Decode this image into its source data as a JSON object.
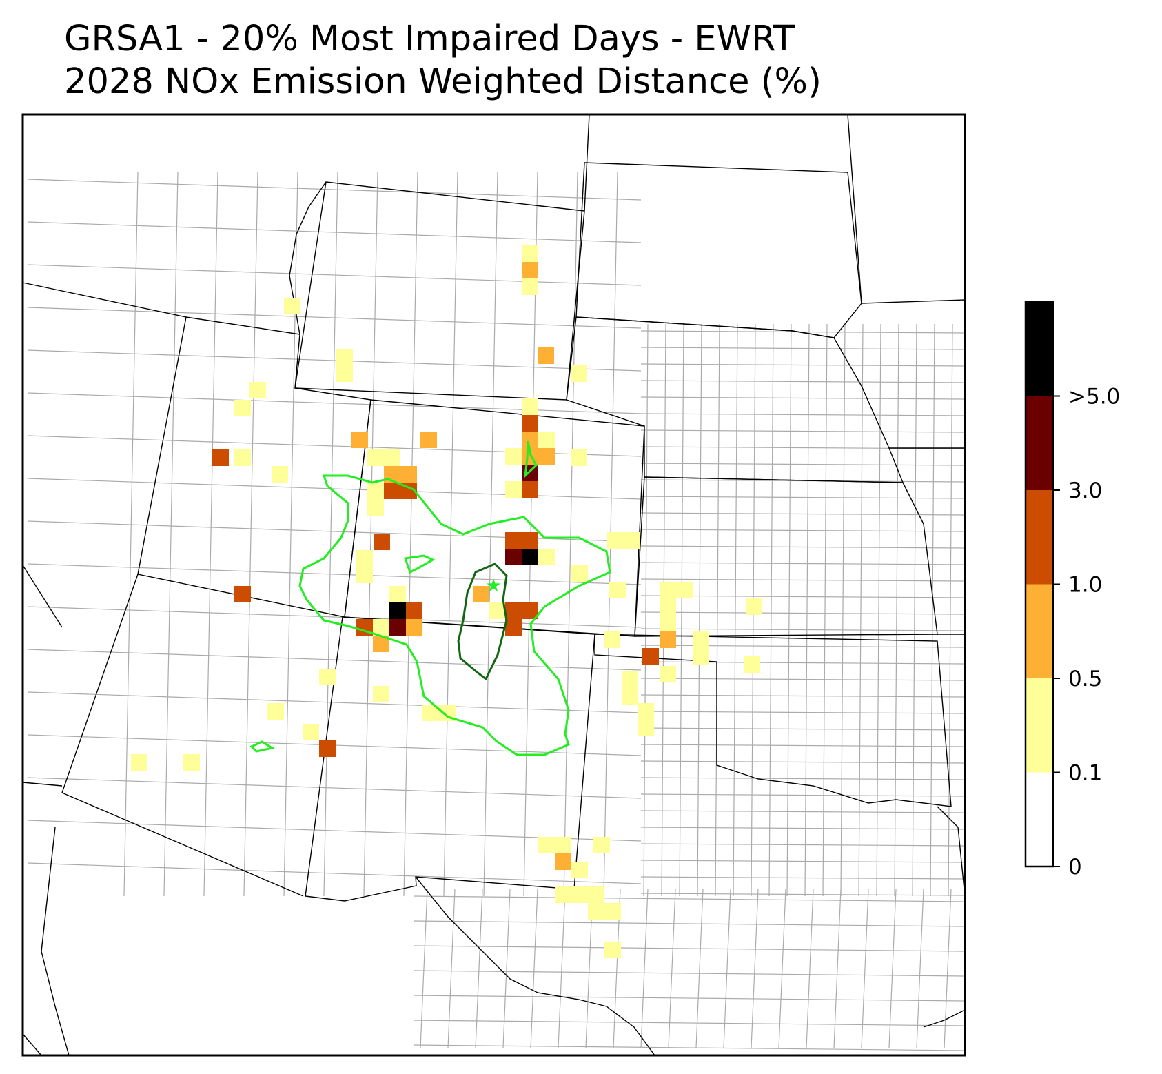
{
  "title": {
    "line1": "GRSA1 - 20% Most Impaired Days - EWRT",
    "line2": "2028 NOx Emission Weighted Distance (%)"
  },
  "colorbar": {
    "tick_labels": [
      "0",
      "0.1",
      "0.5",
      "1.0",
      "3.0",
      ">5.0"
    ],
    "bins": [
      {
        "range": "0-0.1",
        "color": "#ffffff"
      },
      {
        "range": "0.1-0.5",
        "color": "#ffff99"
      },
      {
        "range": "0.5-1.0",
        "color": "#fdb033"
      },
      {
        "range": "1.0-3.0",
        "color": "#cc4c02"
      },
      {
        "range": "3.0-5.0",
        "color": "#6a0000"
      },
      {
        "range": ">5.0",
        "color": "#000000"
      }
    ]
  },
  "map": {
    "region": "Southwestern / Central United States (county map)",
    "receptor_marker": "star",
    "receptor_color": "#22ee22",
    "contour_colors": {
      "outer": "#22ee22",
      "inner": "#116611"
    }
  }
}
